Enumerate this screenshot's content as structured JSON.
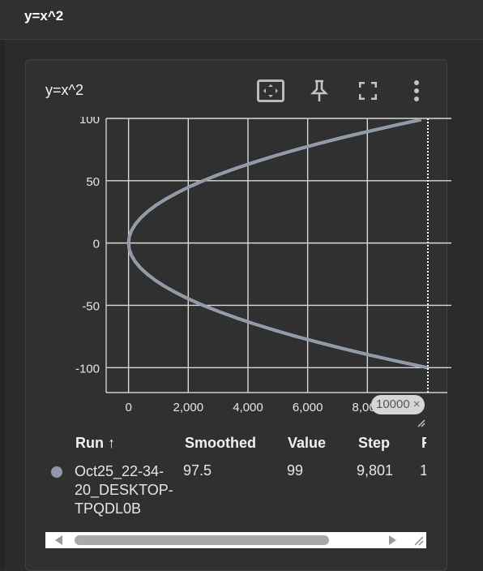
{
  "header": {
    "title": "y=x^2"
  },
  "card": {
    "title": "y=x^2",
    "tools": {
      "fit_icon": "fit-domain-icon",
      "pin_icon": "pin-icon",
      "fullscreen_icon": "fullscreen-icon",
      "menu_icon": "more-vert-icon"
    }
  },
  "chart_data": {
    "type": "line",
    "x_ticks": [
      "0",
      "2,000",
      "4,000",
      "6,000",
      "8,000"
    ],
    "y_ticks": [
      "100",
      "50",
      "0",
      "-50",
      "-100"
    ],
    "xlim": [
      -750,
      10000
    ],
    "ylim": [
      -120,
      100
    ],
    "grid": true,
    "series": [
      {
        "color": "#8f98a6",
        "x": [
          10000,
          9025,
          8100,
          7225,
          6400,
          5625,
          4900,
          4225,
          3600,
          3025,
          2500,
          2025,
          1600,
          1225,
          900,
          625,
          400,
          225,
          100,
          25,
          0,
          25,
          100,
          225,
          400,
          625,
          900,
          1225,
          1600,
          2025,
          2500,
          3025,
          3600,
          4225,
          4900,
          5625,
          6400,
          7225,
          8100,
          9025,
          9801
        ],
        "y": [
          -100,
          -95,
          -90,
          -85,
          -80,
          -75,
          -70,
          -65,
          -60,
          -55,
          -50,
          -45,
          -40,
          -35,
          -30,
          -25,
          -20,
          -15,
          -10,
          -5,
          0,
          5,
          10,
          15,
          20,
          25,
          30,
          35,
          40,
          45,
          50,
          55,
          60,
          65,
          70,
          75,
          80,
          85,
          90,
          95,
          99
        ]
      }
    ],
    "cursor_step_label": "10000",
    "cursor_chip_close": "×"
  },
  "table": {
    "headers": {
      "run": "Run ↑",
      "smoothed": "Smoothed",
      "value": "Value",
      "step": "Step",
      "relative": "R"
    },
    "rows": [
      {
        "color": "#8f98a6",
        "run": "Oct25_22-34-20_DESKTOP-TPQDL0B",
        "run_line1": "Oct25_22-34-",
        "run_line2": "20_DESKTOP-",
        "run_line3": "TPQDL0B",
        "smoothed": "97.5",
        "value": "99",
        "step": "9,801",
        "relative": "1"
      }
    ]
  }
}
